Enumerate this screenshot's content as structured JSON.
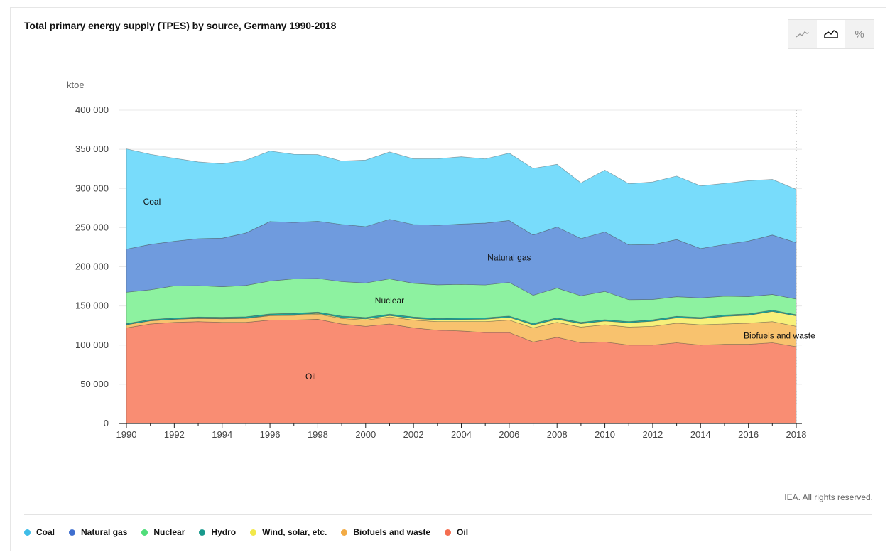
{
  "title": "Total primary energy supply (TPES) by source, Germany 1990-2018",
  "toggle": {
    "line_icon": "line-chart-icon",
    "area_icon": "area-chart-icon",
    "percent_label": "%"
  },
  "copyright": "IEA. All rights reserved.",
  "chart_data": {
    "type": "area",
    "stacked": true,
    "title": "Total primary energy supply (TPES) by source, Germany 1990-2018",
    "ylabel": "ktoe",
    "xlabel": "",
    "ylim": [
      0,
      400000
    ],
    "yticks": [
      0,
      50000,
      100000,
      150000,
      200000,
      250000,
      300000,
      350000,
      400000
    ],
    "ytick_labels": [
      "0",
      "50 000",
      "100 000",
      "150 000",
      "200 000",
      "250 000",
      "300 000",
      "350 000",
      "400 000"
    ],
    "xticks": [
      1990,
      1992,
      1994,
      1996,
      1998,
      2000,
      2002,
      2004,
      2006,
      2008,
      2010,
      2012,
      2014,
      2016,
      2018
    ],
    "x": [
      1990,
      1991,
      1992,
      1993,
      1994,
      1995,
      1996,
      1997,
      1998,
      1999,
      2000,
      2001,
      2002,
      2003,
      2004,
      2005,
      2006,
      2007,
      2008,
      2009,
      2010,
      2011,
      2012,
      2013,
      2014,
      2015,
      2016,
      2017,
      2018
    ],
    "series": [
      {
        "name": "Oil",
        "color": "#f98d73",
        "label_at": [
          1997.7,
          60000
        ],
        "values": [
          122000,
          127000,
          129000,
          130000,
          129000,
          129000,
          132000,
          132000,
          133000,
          127000,
          124000,
          127000,
          122000,
          119000,
          118000,
          116000,
          116000,
          104000,
          110000,
          103000,
          104000,
          100000,
          100000,
          103000,
          100000,
          101000,
          101000,
          103000,
          98000
        ]
      },
      {
        "name": "Biofuels and waste",
        "color": "#f8c26e",
        "label_at": [
          2017.3,
          112000
        ],
        "values": [
          4000,
          4000,
          4000,
          4000,
          4500,
          5000,
          5500,
          6000,
          6500,
          7000,
          8000,
          9000,
          10000,
          11000,
          12000,
          14000,
          16000,
          18000,
          19000,
          20000,
          22000,
          23000,
          24000,
          25000,
          26000,
          26000,
          27000,
          27000,
          26000
        ]
      },
      {
        "name": "Wind, solar, etc.",
        "color": "#f7f07a",
        "label_at": null,
        "values": [
          0,
          0,
          0,
          200,
          300,
          400,
          600,
          800,
          1000,
          1200,
          1400,
          1700,
          2000,
          2300,
          2700,
          3100,
          3400,
          3800,
          4000,
          4300,
          4700,
          5500,
          6500,
          6800,
          7600,
          9700,
          10100,
          12900,
          13300
        ]
      },
      {
        "name": "Hydro",
        "color": "#1da89b",
        "label_at": null,
        "values": [
          1500,
          1600,
          1600,
          1700,
          1700,
          1800,
          1700,
          1800,
          1700,
          1800,
          1900,
          1900,
          1900,
          1700,
          1800,
          1700,
          1700,
          1800,
          1800,
          1700,
          1800,
          1500,
          1800,
          2000,
          1700,
          1700,
          1800,
          1700,
          1500
        ]
      },
      {
        "name": "Nuclear",
        "color": "#8df2a0",
        "label_at": [
          2001,
          157000
        ],
        "values": [
          40000,
          38000,
          41000,
          40000,
          39000,
          40000,
          42000,
          44000,
          43000,
          44000,
          44000,
          45000,
          43000,
          43000,
          43000,
          42000,
          43000,
          36000,
          38000,
          34000,
          36000,
          28000,
          26000,
          25000,
          25000,
          24000,
          22000,
          20000,
          20000
        ]
      },
      {
        "name": "Natural gas",
        "color": "#6f9bde",
        "label_at": [
          2006,
          212000
        ],
        "values": [
          55000,
          58000,
          57000,
          60000,
          62000,
          67000,
          76000,
          72000,
          73000,
          73000,
          72000,
          76000,
          75000,
          76000,
          77000,
          79000,
          79000,
          77000,
          78000,
          73000,
          76000,
          70000,
          70000,
          73000,
          63000,
          66000,
          71000,
          76000,
          72000
        ]
      },
      {
        "name": "Coal",
        "color": "#78dcfb",
        "label_at": [
          1990.7,
          283000
        ],
        "values": [
          128000,
          115000,
          106000,
          98000,
          95000,
          93000,
          90000,
          87000,
          85000,
          81000,
          85000,
          86000,
          84000,
          85000,
          86000,
          82000,
          86000,
          85000,
          80000,
          71000,
          79000,
          78000,
          80000,
          81000,
          80000,
          78000,
          77000,
          71000,
          68000
        ]
      }
    ],
    "legend": [
      "Coal",
      "Natural gas",
      "Nuclear",
      "Hydro",
      "Wind, solar, etc.",
      "Biofuels and waste",
      "Oil"
    ],
    "legend_colors": [
      "#3fbde8",
      "#3f6fcf",
      "#50dd7a",
      "#18998c",
      "#f2e84a",
      "#f2ab45",
      "#f56e50"
    ],
    "legend_position": "bottom-left"
  }
}
